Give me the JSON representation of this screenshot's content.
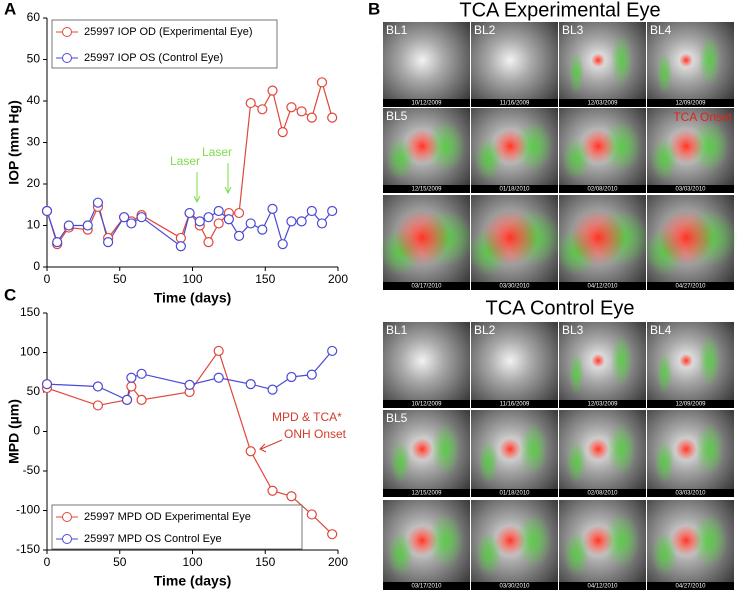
{
  "panel_labels": [
    "A",
    "B",
    "C"
  ],
  "chart_data": [
    {
      "type": "line",
      "ylabel": "IOP (mm Hg)",
      "xlabel": "Time (days)",
      "x": [
        0,
        7,
        15,
        28,
        35,
        42,
        53,
        58,
        65,
        92,
        98,
        105,
        111,
        118,
        125,
        132,
        140,
        148,
        155,
        162,
        168,
        175,
        182,
        189,
        196
      ],
      "xlim": [
        0,
        200
      ],
      "xticks": [
        0,
        50,
        100,
        150,
        200
      ],
      "ylim": [
        0,
        60
      ],
      "yticks": [
        0,
        10,
        20,
        30,
        40,
        50,
        60
      ],
      "series": [
        {
          "name": "25997 IOP OD (Experimental Eye)",
          "color": "#e0473a",
          "values": [
            13.5,
            5.5,
            9.5,
            9,
            14.5,
            7,
            12,
            11,
            12.5,
            7,
            13,
            10,
            6,
            10.5,
            13,
            13,
            39.5,
            38,
            42.5,
            32.5,
            38.5,
            37.5,
            36,
            44.5,
            36
          ]
        },
        {
          "name": "25997 IOP OS (Control Eye)",
          "color": "#4a4ad6",
          "values": [
            13.5,
            6,
            10,
            10,
            15.5,
            6,
            12,
            10.5,
            12,
            5,
            13,
            11,
            12,
            13.5,
            11.5,
            7.5,
            10.5,
            9,
            14,
            5.5,
            11,
            11,
            13.5,
            10.5,
            13.5
          ]
        }
      ],
      "annotations": [
        "Laser",
        "Laser"
      ],
      "annotation_color": "#7ddc4a"
    },
    {
      "type": "line",
      "ylabel": "MPD (µm)",
      "xlabel": "Time (days)",
      "x": [
        0,
        35,
        55,
        58,
        65,
        98,
        118,
        140,
        155,
        168,
        182,
        196
      ],
      "xlim": [
        0,
        200
      ],
      "xticks": [
        0,
        50,
        100,
        150,
        200
      ],
      "ylim": [
        -150,
        150
      ],
      "yticks": [
        -150,
        -100,
        -50,
        0,
        50,
        100,
        150
      ],
      "series": [
        {
          "name": "25997 MPD OD Experimental Eye",
          "color": "#e0473a",
          "values": [
            55,
            33,
            40,
            57,
            40,
            50,
            102,
            -25,
            -75,
            -82,
            -105,
            -130
          ]
        },
        {
          "name": "25997 MPD OS Control Eye",
          "color": "#4a4ad6",
          "values": [
            60,
            57,
            40,
            68,
            73,
            59,
            68,
            60,
            53,
            69,
            72,
            102
          ]
        }
      ],
      "annotations": [
        "MPD & TCA*",
        "ONH Onset"
      ],
      "annotation_color": "#d63a2a"
    }
  ],
  "image_panels": [
    {
      "title": "TCA Experimental Eye",
      "images": [
        {
          "label": "BL1",
          "date": "10/12/2009"
        },
        {
          "label": "BL2",
          "date": "11/16/2009"
        },
        {
          "label": "BL3",
          "date": "12/03/2009"
        },
        {
          "label": "BL4",
          "date": "12/09/2009"
        },
        {
          "label": "BL5",
          "date": "12/15/2009"
        },
        {
          "date": "01/18/2010"
        },
        {
          "date": "02/08/2010"
        },
        {
          "date": "03/03/2010",
          "overlay": "TCA Onset"
        },
        {
          "date": "03/17/2010"
        },
        {
          "date": "03/30/2010"
        },
        {
          "date": "04/12/2010"
        },
        {
          "date": "04/27/2010"
        }
      ]
    },
    {
      "title": "TCA Control Eye",
      "images": [
        {
          "label": "BL1",
          "date": "10/12/2009"
        },
        {
          "label": "BL2",
          "date": "11/16/2009"
        },
        {
          "label": "BL3",
          "date": "12/03/2009"
        },
        {
          "label": "BL4",
          "date": "12/09/2009"
        },
        {
          "label": "BL5",
          "date": "12/15/2009"
        },
        {
          "date": "01/18/2010"
        },
        {
          "date": "02/08/2010"
        },
        {
          "date": "03/03/2010"
        },
        {
          "date": "03/17/2010"
        },
        {
          "date": "03/30/2010"
        },
        {
          "date": "04/12/2010"
        },
        {
          "date": "04/27/2010"
        }
      ]
    }
  ]
}
